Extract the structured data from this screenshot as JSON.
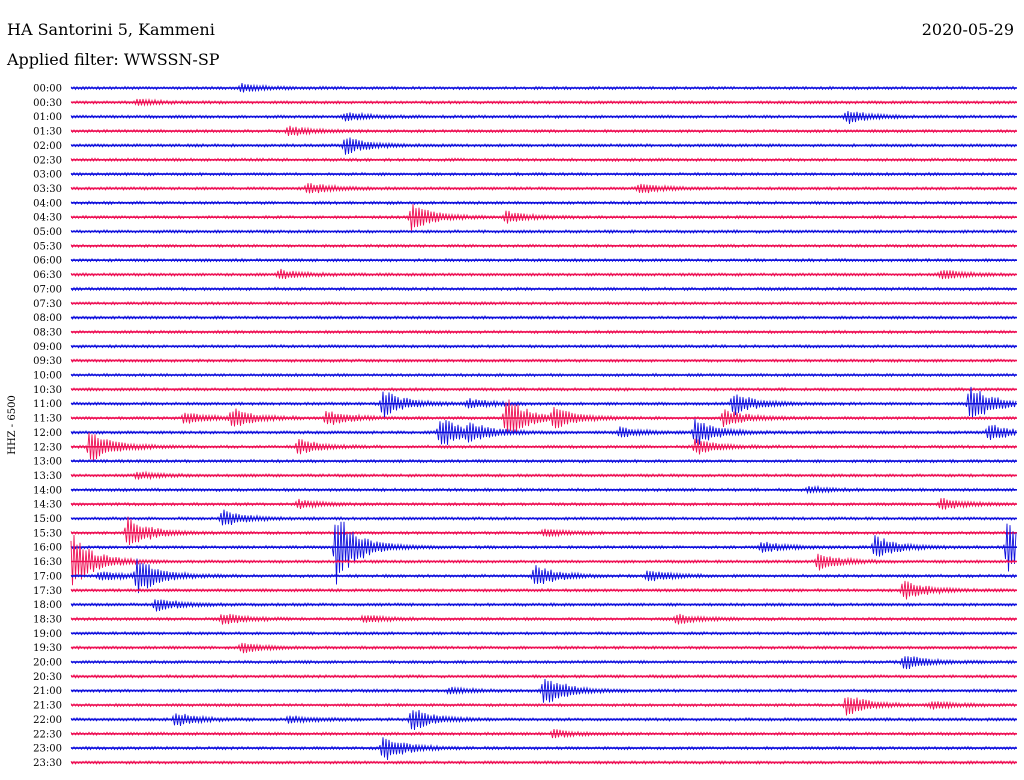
{
  "header": {
    "station": "HA Santorini 5, Kammeni",
    "filter": "Applied filter: WWSSN-SP",
    "date": "2020-05-29"
  },
  "chart_data": {
    "type": "line",
    "ylabel": "HHZ - 6500",
    "trace_colors": [
      "#1010dd",
      "#ee1155"
    ],
    "times": [
      "00:00",
      "00:30",
      "01:00",
      "01:30",
      "02:00",
      "02:30",
      "03:00",
      "03:30",
      "04:00",
      "04:30",
      "05:00",
      "05:30",
      "06:00",
      "06:30",
      "07:00",
      "07:30",
      "08:00",
      "08:30",
      "09:00",
      "09:30",
      "10:00",
      "10:30",
      "11:00",
      "11:30",
      "12:00",
      "12:30",
      "13:00",
      "13:30",
      "14:00",
      "14:30",
      "15:00",
      "15:30",
      "16:00",
      "16:30",
      "17:00",
      "17:30",
      "18:00",
      "18:30",
      "19:00",
      "19:30",
      "20:00",
      "20:30",
      "21:00",
      "21:30",
      "22:00",
      "22:30",
      "23:00",
      "23:30"
    ],
    "events": [
      {
        "row": 0,
        "t": 0.18,
        "amp": 4
      },
      {
        "row": 1,
        "t": 0.07,
        "amp": 3
      },
      {
        "row": 2,
        "t": 0.29,
        "amp": 4
      },
      {
        "row": 2,
        "t": 0.82,
        "amp": 7
      },
      {
        "row": 3,
        "t": 0.23,
        "amp": 5
      },
      {
        "row": 4,
        "t": 0.29,
        "amp": 9
      },
      {
        "row": 7,
        "t": 0.25,
        "amp": 6
      },
      {
        "row": 7,
        "t": 0.6,
        "amp": 5
      },
      {
        "row": 9,
        "t": 0.36,
        "amp": 14
      },
      {
        "row": 9,
        "t": 0.46,
        "amp": 6
      },
      {
        "row": 13,
        "t": 0.22,
        "amp": 5
      },
      {
        "row": 13,
        "t": 0.92,
        "amp": 5
      },
      {
        "row": 22,
        "t": 0.33,
        "amp": 14
      },
      {
        "row": 22,
        "t": 0.42,
        "amp": 5
      },
      {
        "row": 22,
        "t": 0.7,
        "amp": 12
      },
      {
        "row": 22,
        "t": 0.95,
        "amp": 20
      },
      {
        "row": 23,
        "t": 0.12,
        "amp": 6
      },
      {
        "row": 23,
        "t": 0.17,
        "amp": 10
      },
      {
        "row": 23,
        "t": 0.27,
        "amp": 8
      },
      {
        "row": 23,
        "t": 0.46,
        "amp": 22
      },
      {
        "row": 23,
        "t": 0.51,
        "amp": 10
      },
      {
        "row": 23,
        "t": 0.69,
        "amp": 9
      },
      {
        "row": 24,
        "t": 0.39,
        "amp": 16
      },
      {
        "row": 24,
        "t": 0.42,
        "amp": 8
      },
      {
        "row": 24,
        "t": 0.58,
        "amp": 5
      },
      {
        "row": 24,
        "t": 0.66,
        "amp": 14
      },
      {
        "row": 24,
        "t": 0.97,
        "amp": 9
      },
      {
        "row": 25,
        "t": 0.02,
        "amp": 18
      },
      {
        "row": 25,
        "t": 0.24,
        "amp": 8
      },
      {
        "row": 25,
        "t": 0.66,
        "amp": 8
      },
      {
        "row": 27,
        "t": 0.07,
        "amp": 4
      },
      {
        "row": 28,
        "t": 0.78,
        "amp": 3
      },
      {
        "row": 29,
        "t": 0.24,
        "amp": 4
      },
      {
        "row": 29,
        "t": 0.92,
        "amp": 6
      },
      {
        "row": 30,
        "t": 0.16,
        "amp": 9
      },
      {
        "row": 31,
        "t": 0.06,
        "amp": 16
      },
      {
        "row": 31,
        "t": 0.5,
        "amp": 4
      },
      {
        "row": 32,
        "t": 0.28,
        "amp": 38
      },
      {
        "row": 32,
        "t": 0.73,
        "amp": 6
      },
      {
        "row": 32,
        "t": 0.85,
        "amp": 12
      },
      {
        "row": 32,
        "t": 0.99,
        "amp": 26
      },
      {
        "row": 33,
        "t": 0.0,
        "amp": 30
      },
      {
        "row": 33,
        "t": 0.79,
        "amp": 9
      },
      {
        "row": 34,
        "t": 0.03,
        "amp": 5
      },
      {
        "row": 34,
        "t": 0.07,
        "amp": 18
      },
      {
        "row": 34,
        "t": 0.49,
        "amp": 12
      },
      {
        "row": 34,
        "t": 0.61,
        "amp": 6
      },
      {
        "row": 35,
        "t": 0.88,
        "amp": 10
      },
      {
        "row": 36,
        "t": 0.09,
        "amp": 7
      },
      {
        "row": 37,
        "t": 0.16,
        "amp": 6
      },
      {
        "row": 37,
        "t": 0.31,
        "amp": 4
      },
      {
        "row": 37,
        "t": 0.64,
        "amp": 5
      },
      {
        "row": 39,
        "t": 0.18,
        "amp": 5
      },
      {
        "row": 40,
        "t": 0.88,
        "amp": 8
      },
      {
        "row": 42,
        "t": 0.4,
        "amp": 3
      },
      {
        "row": 42,
        "t": 0.5,
        "amp": 16
      },
      {
        "row": 43,
        "t": 0.82,
        "amp": 11
      },
      {
        "row": 43,
        "t": 0.91,
        "amp": 4
      },
      {
        "row": 44,
        "t": 0.11,
        "amp": 7
      },
      {
        "row": 44,
        "t": 0.23,
        "amp": 4
      },
      {
        "row": 44,
        "t": 0.36,
        "amp": 12
      },
      {
        "row": 45,
        "t": 0.51,
        "amp": 4
      },
      {
        "row": 46,
        "t": 0.33,
        "amp": 14
      }
    ]
  }
}
